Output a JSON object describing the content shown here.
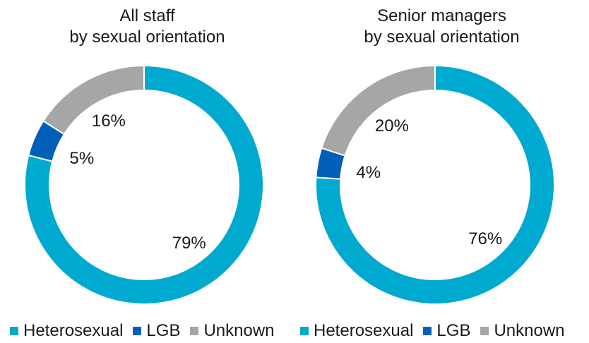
{
  "colors": {
    "Heterosexual": "#00A9CF",
    "LGB": "#0060B8",
    "Unknown": "#A6A6A6"
  },
  "chart_data": [
    {
      "type": "pie",
      "variant": "donut",
      "title_lines": [
        "All staff",
        "by sexual orientation"
      ],
      "slices": [
        {
          "name": "Heterosexual",
          "value": 79,
          "label": "79%"
        },
        {
          "name": "LGB",
          "value": 5,
          "label": "5%"
        },
        {
          "name": "Unknown",
          "value": 16,
          "label": "16%"
        }
      ],
      "legend": [
        "Heterosexual",
        "LGB",
        "Unknown"
      ],
      "legend_position": "bottom"
    },
    {
      "type": "pie",
      "variant": "donut",
      "title_lines": [
        "Senior managers",
        "by sexual orientation"
      ],
      "slices": [
        {
          "name": "Heterosexual",
          "value": 76,
          "label": "76%"
        },
        {
          "name": "LGB",
          "value": 4,
          "label": "4%"
        },
        {
          "name": "Unknown",
          "value": 20,
          "label": "20%"
        }
      ],
      "legend": [
        "Heterosexual",
        "LGB",
        "Unknown"
      ],
      "legend_position": "bottom"
    }
  ]
}
